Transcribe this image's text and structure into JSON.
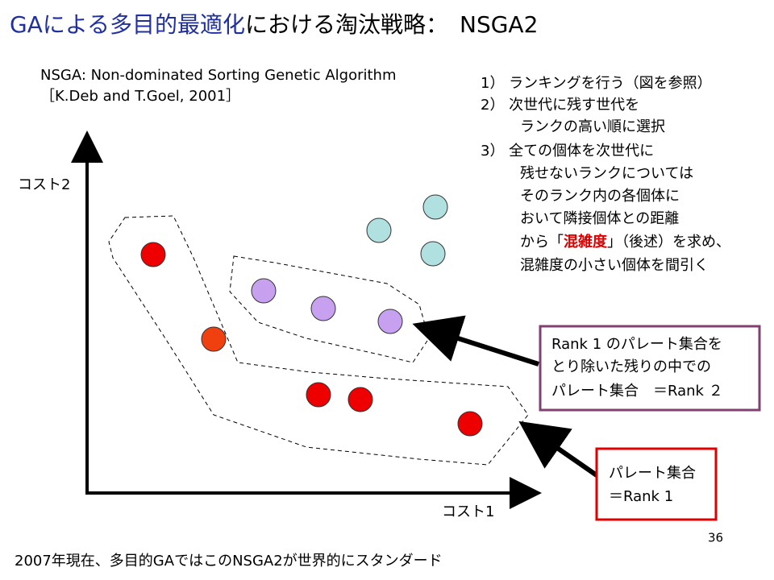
{
  "header": {
    "title_blue": "GAによる多目的最適化",
    "title_rest": "における淘汰戦略：　NSGA2"
  },
  "reference": {
    "line1": "NSGA: Non-dominated Sorting Genetic Algorithm",
    "line2": "［K.Deb and T.Goel, 2001］"
  },
  "steps": {
    "lines": [
      "1）  ランキングを行う（図を参照）",
      "2）  次世代に残す世代を",
      "ランクの高い順に選択",
      "3）  全ての個体を次世代に",
      "残せないランクについては",
      "そのランク内の各個体に",
      "おいて隣接個体との距離"
    ],
    "crowd_pre": "から「",
    "crowd_word": "混雑度",
    "crowd_post": "」（後述）を求め、",
    "last": "混雑度の小さい個体を間引く"
  },
  "axes": {
    "y_label": "コスト2",
    "x_label": "コスト1"
  },
  "callout_rank2": {
    "lines": [
      "Rank 1 のパレート集合を",
      "とり除いた残りの中での",
      "パレート集合　＝Rank ２"
    ]
  },
  "callout_rank1": {
    "lines": [
      "パレート集合",
      "＝Rank 1"
    ]
  },
  "page_number": "36",
  "footer": "2007年現在、多目的GAではこのNSGA2が世界的にスタンダード"
}
